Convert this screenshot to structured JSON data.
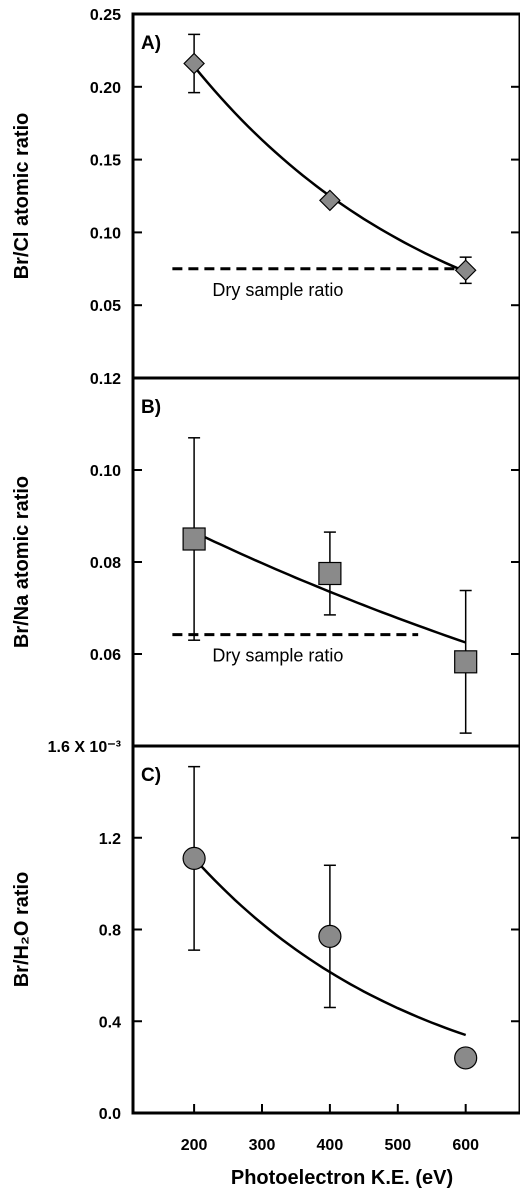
{
  "chart_data": [
    {
      "type": "scatter",
      "panel_label": "A)",
      "ylabel": "Br/Cl atomic ratio",
      "ylim": [
        0,
        0.25
      ],
      "yticks": [
        "0.25",
        "0.20",
        "0.15",
        "0.10",
        "0.05"
      ],
      "ytick_values": [
        0.25,
        0.2,
        0.15,
        0.1,
        0.05
      ],
      "marker": "diamond",
      "series": [
        {
          "x": [
            200,
            400,
            600
          ],
          "y": [
            0.216,
            0.122,
            0.074
          ],
          "err": [
            0.02,
            0.0,
            0.009
          ]
        }
      ],
      "fit": {
        "x0": 200,
        "y0": 0.214,
        "x1": 600,
        "y1": 0.073
      },
      "reference_line": {
        "label": "Dry sample ratio",
        "y": 0.075,
        "x_start": 168,
        "x_end": 608
      }
    },
    {
      "type": "scatter",
      "panel_label": "B)",
      "ylabel": "Br/Na atomic ratio",
      "ylim": [
        0.04,
        0.12
      ],
      "yticks": [
        "0.12",
        "0.10",
        "0.08",
        "0.06"
      ],
      "ytick_values": [
        0.12,
        0.1,
        0.08,
        0.06
      ],
      "marker": "square",
      "series": [
        {
          "x": [
            200,
            400,
            600
          ],
          "y": [
            0.085,
            0.0775,
            0.0583
          ],
          "err": [
            0.022,
            0.009,
            0.0155
          ]
        }
      ],
      "fit": {
        "x0": 200,
        "y0": 0.0865,
        "x1": 600,
        "y1": 0.0625
      },
      "reference_line": {
        "label": "Dry sample ratio",
        "y": 0.0642,
        "x_start": 168,
        "x_end": 530
      }
    },
    {
      "type": "scatter",
      "panel_label": "C)",
      "ylabel": "Br/H₂O ratio",
      "ylim": [
        0,
        0.0016
      ],
      "yticks": [
        "1.6 X 10⁻³",
        "1.2",
        "0.8",
        "0.4",
        "0.0"
      ],
      "ytick_values": [
        0.0016,
        0.0012,
        0.0008,
        0.0004,
        0.0
      ],
      "marker": "circle",
      "series": [
        {
          "x": [
            200,
            400,
            600
          ],
          "y": [
            0.00111,
            0.00077,
            0.00024
          ],
          "err": [
            0.0004,
            0.00031,
            0.0
          ]
        }
      ],
      "fit": {
        "x0": 200,
        "y0": 0.00111,
        "x1": 600,
        "y1": 0.00034
      }
    }
  ],
  "x_axis": {
    "label": "Photoelectron K.E. (eV)",
    "ticks": [
      "200",
      "300",
      "400",
      "500",
      "600"
    ],
    "tick_values": [
      200,
      300,
      400,
      500,
      600
    ],
    "xlim": [
      110,
      680
    ]
  },
  "colors": {
    "marker_fill": "#8a8a8a",
    "line": "#000000",
    "background": "#ffffff"
  }
}
